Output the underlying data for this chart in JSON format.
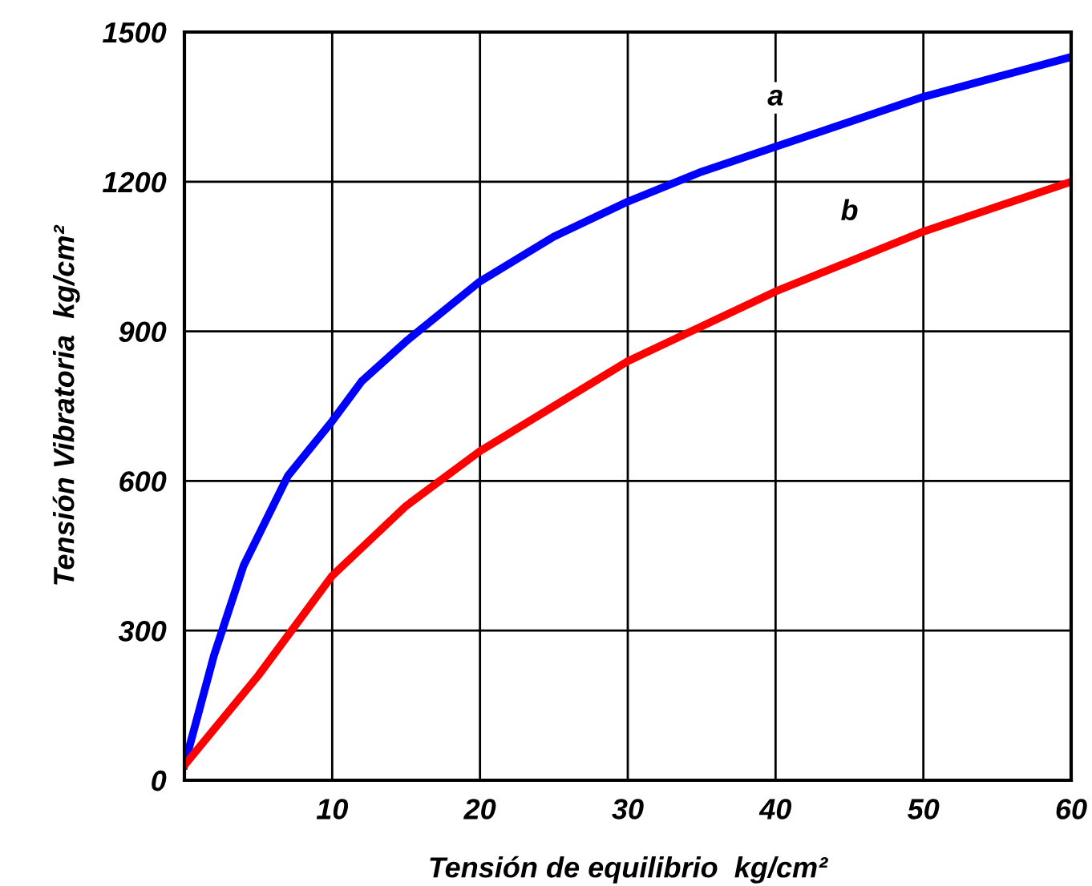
{
  "chart_data": {
    "type": "line",
    "xlabel": "Tensión de equilibrio  kg/cm²",
    "ylabel": "Tensión Vibratoria  kg/cm²",
    "series": [
      {
        "name": "a",
        "color": "#0000ff",
        "x": [
          0,
          2,
          4,
          7,
          10,
          12,
          15,
          20,
          25,
          30,
          35,
          40,
          45,
          50,
          55,
          60
        ],
        "values": [
          30,
          250,
          430,
          610,
          720,
          800,
          880,
          1000,
          1090,
          1160,
          1220,
          1270,
          1320,
          1370,
          1410,
          1450
        ]
      },
      {
        "name": "b",
        "color": "#ff0000",
        "x": [
          0,
          5,
          10,
          15,
          20,
          25,
          30,
          35,
          40,
          45,
          50,
          55,
          60
        ],
        "values": [
          30,
          210,
          410,
          550,
          660,
          750,
          840,
          910,
          980,
          1040,
          1100,
          1150,
          1200
        ]
      }
    ],
    "xlim": [
      0,
      60
    ],
    "xticks": [
      {
        "value": 0,
        "label": null
      },
      10,
      20,
      30,
      40,
      50,
      60
    ],
    "ylim": [
      0,
      1500
    ],
    "yticks": [
      0,
      300,
      600,
      900,
      1200,
      1500
    ],
    "grid": true,
    "legend": false,
    "marker": "none",
    "line_style": "solid"
  }
}
